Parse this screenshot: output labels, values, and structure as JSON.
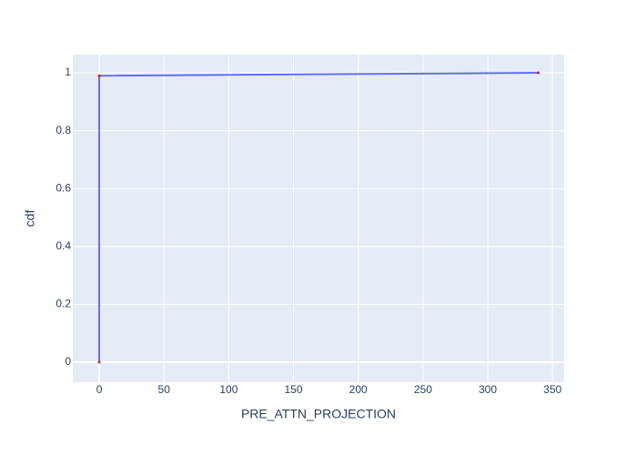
{
  "chart_data": {
    "type": "line",
    "x_label": "PRE_ATTN_PROJECTION",
    "y_label": "cdf",
    "x": [
      0,
      0,
      339
    ],
    "values": [
      0,
      0.99,
      1
    ],
    "color": "#636efa",
    "marker_color": "#d62728",
    "xlim": [
      -20.4,
      359
    ],
    "ylim": [
      -0.069,
      1.063
    ],
    "xticks": [
      0,
      50,
      100,
      150,
      200,
      250,
      300,
      350
    ],
    "yticks": [
      0,
      0.2,
      0.4,
      0.6,
      0.8,
      1
    ],
    "grid": true
  }
}
